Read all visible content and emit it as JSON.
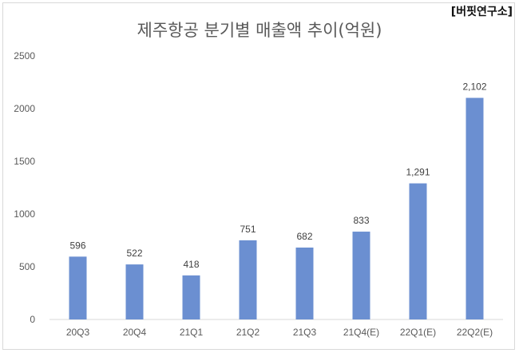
{
  "watermark": "[버핏연구소]",
  "chart_data": {
    "type": "bar",
    "title": "제주항공 분기별 매출액 추이(억원)",
    "xlabel": "",
    "ylabel": "",
    "categories": [
      "20Q3",
      "20Q4",
      "21Q1",
      "21Q2",
      "21Q3",
      "21Q4(E)",
      "22Q1(E)",
      "22Q2(E)"
    ],
    "values": [
      596,
      522,
      418,
      751,
      682,
      833,
      1291,
      2102
    ],
    "value_labels": [
      "596",
      "522",
      "418",
      "751",
      "682",
      "833",
      "1,291",
      "2,102"
    ],
    "yticks": [
      "0",
      "500",
      "1000",
      "1500",
      "2000",
      "2500"
    ],
    "ylim": [
      0,
      2500
    ],
    "grid": false,
    "bar_color": "#6b8fd1"
  }
}
